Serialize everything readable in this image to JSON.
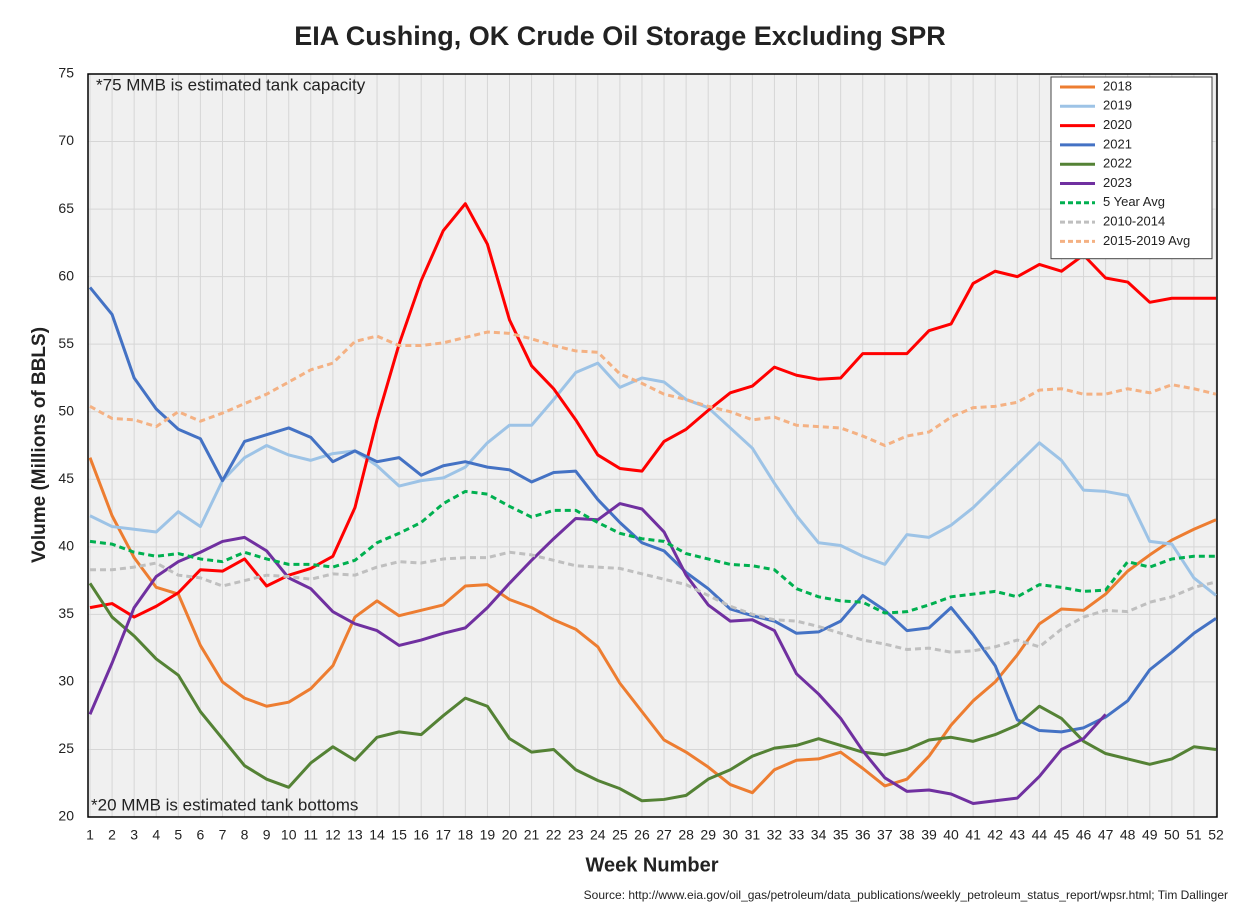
{
  "chart_data": {
    "type": "line",
    "title": "EIA Cushing, OK Crude Oil Storage Excluding SPR",
    "x_label": "Week Number",
    "y_label": "Volume (Millions of BBLS)",
    "annotations": [
      "*75 MMB is estimated tank capacity",
      "*20 MMB is estimated tank bottoms"
    ],
    "source": "Source: http://www.eia.gov/oil_gas/petroleum/data_publications/weekly_petroleum_status_report/wpsr.html; Tim Dallinger",
    "grid": true,
    "legend": "top-right",
    "x": [
      1,
      2,
      3,
      4,
      5,
      6,
      7,
      8,
      9,
      10,
      11,
      12,
      13,
      14,
      15,
      16,
      17,
      18,
      19,
      20,
      21,
      22,
      23,
      24,
      25,
      26,
      27,
      28,
      29,
      30,
      31,
      32,
      33,
      34,
      35,
      36,
      37,
      38,
      39,
      40,
      41,
      42,
      43,
      44,
      45,
      46,
      47,
      48,
      49,
      50,
      51,
      52
    ],
    "xlim": [
      1,
      52
    ],
    "xticks": [
      1,
      2,
      3,
      4,
      5,
      6,
      7,
      8,
      9,
      10,
      11,
      12,
      13,
      14,
      15,
      16,
      17,
      18,
      19,
      20,
      21,
      22,
      23,
      24,
      25,
      26,
      27,
      28,
      29,
      30,
      31,
      32,
      33,
      34,
      35,
      36,
      37,
      38,
      39,
      40,
      41,
      42,
      43,
      44,
      45,
      46,
      47,
      48,
      49,
      50,
      51,
      52
    ],
    "ylim": [
      20,
      75
    ],
    "yticks": [
      20,
      25,
      30,
      35,
      40,
      45,
      50,
      55,
      60,
      65,
      70,
      75
    ],
    "series": [
      {
        "name": "2018",
        "color": "#ed7d31",
        "dash": false,
        "values": [
          46.6,
          42.3,
          39.2,
          37.0,
          36.5,
          32.7,
          30.0,
          28.8,
          28.2,
          28.5,
          29.5,
          31.2,
          34.8,
          36.0,
          34.9,
          35.3,
          35.7,
          37.1,
          37.2,
          36.1,
          35.5,
          34.6,
          33.9,
          32.6,
          29.9,
          27.8,
          25.7,
          24.8,
          23.7,
          22.4,
          21.8,
          23.5,
          24.2,
          24.3,
          24.8,
          23.6,
          22.3,
          22.8,
          24.5,
          26.8,
          28.6,
          30.0,
          32.0,
          34.3,
          35.4,
          35.3,
          36.5,
          38.2,
          39.4,
          40.5,
          41.3,
          42.0
        ]
      },
      {
        "name": "2019",
        "color": "#9dc3e6",
        "dash": false,
        "values": [
          42.3,
          41.5,
          41.3,
          41.1,
          42.6,
          41.5,
          44.9,
          46.6,
          47.5,
          46.8,
          46.4,
          46.9,
          47.1,
          46.0,
          44.5,
          44.9,
          45.1,
          45.9,
          47.7,
          49.0,
          49.0,
          50.9,
          52.9,
          53.6,
          51.8,
          52.5,
          52.2,
          50.9,
          50.3,
          48.8,
          47.3,
          44.7,
          42.3,
          40.3,
          40.1,
          39.3,
          38.7,
          40.9,
          40.7,
          41.6,
          42.9,
          44.5,
          46.1,
          47.7,
          46.4,
          44.2,
          44.1,
          43.8,
          40.4,
          40.2,
          37.7,
          36.4
        ]
      },
      {
        "name": "2020",
        "color": "#ff0000",
        "dash": false,
        "values": [
          35.5,
          35.8,
          34.8,
          35.6,
          36.6,
          38.3,
          38.2,
          39.1,
          37.1,
          37.9,
          38.4,
          39.3,
          42.9,
          49.4,
          55.0,
          59.7,
          63.4,
          65.4,
          62.4,
          56.8,
          53.4,
          51.7,
          49.4,
          46.8,
          45.8,
          45.6,
          47.8,
          48.7,
          50.1,
          51.4,
          51.9,
          53.3,
          52.7,
          52.4,
          52.5,
          54.3,
          54.3,
          54.3,
          56.0,
          56.5,
          59.5,
          60.4,
          60.0,
          60.9,
          60.4,
          61.6,
          59.9,
          59.6,
          58.1,
          58.4,
          58.4,
          58.4
        ]
      },
      {
        "name": "2021",
        "color": "#4472c4",
        "dash": false,
        "values": [
          59.2,
          57.2,
          52.5,
          50.2,
          48.7,
          48.0,
          44.9,
          47.8,
          48.3,
          48.8,
          48.1,
          46.3,
          47.1,
          46.3,
          46.6,
          45.3,
          46.0,
          46.3,
          45.9,
          45.7,
          44.8,
          45.5,
          45.6,
          43.5,
          41.8,
          40.3,
          39.7,
          38.1,
          36.9,
          35.4,
          34.9,
          34.5,
          33.6,
          33.7,
          34.5,
          36.4,
          35.3,
          33.8,
          34.0,
          35.5,
          33.5,
          31.2,
          27.2,
          26.4,
          26.3,
          26.6,
          27.4,
          28.6,
          30.9,
          32.2,
          33.6,
          34.7
        ]
      },
      {
        "name": "2022",
        "color": "#548235",
        "dash": false,
        "values": [
          37.3,
          34.8,
          33.4,
          31.7,
          30.5,
          27.8,
          25.8,
          23.8,
          22.8,
          22.2,
          24.0,
          25.2,
          24.2,
          25.9,
          26.3,
          26.1,
          27.5,
          28.8,
          28.2,
          25.8,
          24.8,
          25.0,
          23.5,
          22.7,
          22.1,
          21.2,
          21.3,
          21.6,
          22.8,
          23.5,
          24.5,
          25.1,
          25.3,
          25.8,
          25.3,
          24.8,
          24.6,
          25.0,
          25.7,
          25.9,
          25.6,
          26.1,
          26.8,
          28.2,
          27.3,
          25.6,
          24.7,
          24.3,
          23.9,
          24.3,
          25.2,
          25.0
        ]
      },
      {
        "name": "2023",
        "color": "#7030a0",
        "dash": false,
        "values": [
          27.6,
          31.4,
          35.5,
          37.8,
          38.9,
          39.6,
          40.4,
          40.7,
          39.7,
          37.7,
          36.9,
          35.2,
          34.3,
          33.8,
          32.7,
          33.1,
          33.6,
          34.0,
          35.5,
          37.3,
          39.0,
          40.6,
          42.1,
          42.0,
          43.2,
          42.8,
          41.1,
          37.9,
          35.7,
          34.5,
          34.6,
          33.8,
          30.6,
          29.1,
          27.3,
          24.9,
          22.9,
          21.9,
          22.0,
          21.7,
          21.0,
          21.2,
          21.4,
          23.0,
          25.0,
          25.8,
          27.6,
          null,
          null,
          null,
          null,
          null
        ]
      },
      {
        "name": "5 Year Avg",
        "color": "#00b050",
        "dash": true,
        "values": [
          40.4,
          40.2,
          39.6,
          39.3,
          39.5,
          39.1,
          38.9,
          39.6,
          39.1,
          38.7,
          38.7,
          38.5,
          39.0,
          40.3,
          41.0,
          41.8,
          43.2,
          44.1,
          43.9,
          43.0,
          42.2,
          42.7,
          42.7,
          41.8,
          41.0,
          40.6,
          40.4,
          39.5,
          39.1,
          38.7,
          38.6,
          38.3,
          36.9,
          36.3,
          36.0,
          35.9,
          35.1,
          35.2,
          35.7,
          36.3,
          36.5,
          36.7,
          36.3,
          37.2,
          37.0,
          36.7,
          36.8,
          38.9,
          38.5,
          39.1,
          39.3,
          39.3
        ]
      },
      {
        "name": "2010-2014",
        "color": "#bfbfbf",
        "dash": true,
        "values": [
          38.3,
          38.3,
          38.5,
          38.8,
          37.9,
          37.7,
          37.1,
          37.5,
          37.9,
          37.8,
          37.6,
          38.0,
          37.9,
          38.5,
          38.9,
          38.8,
          39.1,
          39.2,
          39.2,
          39.6,
          39.4,
          39.0,
          38.6,
          38.5,
          38.4,
          38.0,
          37.6,
          37.2,
          36.4,
          35.6,
          35.0,
          34.6,
          34.5,
          34.1,
          33.6,
          33.1,
          32.8,
          32.4,
          32.5,
          32.2,
          32.3,
          32.6,
          33.1,
          32.6,
          33.9,
          34.8,
          35.3,
          35.2,
          35.9,
          36.3,
          37.0,
          37.4
        ]
      },
      {
        "name": "2015-2019 Avg",
        "color": "#f4b183",
        "dash": true,
        "values": [
          50.4,
          49.5,
          49.4,
          48.9,
          50.0,
          49.3,
          49.9,
          50.6,
          51.3,
          52.2,
          53.1,
          53.6,
          55.2,
          55.6,
          54.9,
          54.9,
          55.1,
          55.5,
          55.9,
          55.8,
          55.4,
          54.9,
          54.5,
          54.4,
          52.8,
          52.1,
          51.3,
          50.9,
          50.4,
          50.0,
          49.4,
          49.6,
          49.0,
          48.9,
          48.8,
          48.2,
          47.5,
          48.2,
          48.5,
          49.6,
          50.3,
          50.4,
          50.7,
          51.6,
          51.7,
          51.3,
          51.3,
          51.7,
          51.4,
          52.0,
          51.7,
          51.3
        ]
      }
    ]
  }
}
